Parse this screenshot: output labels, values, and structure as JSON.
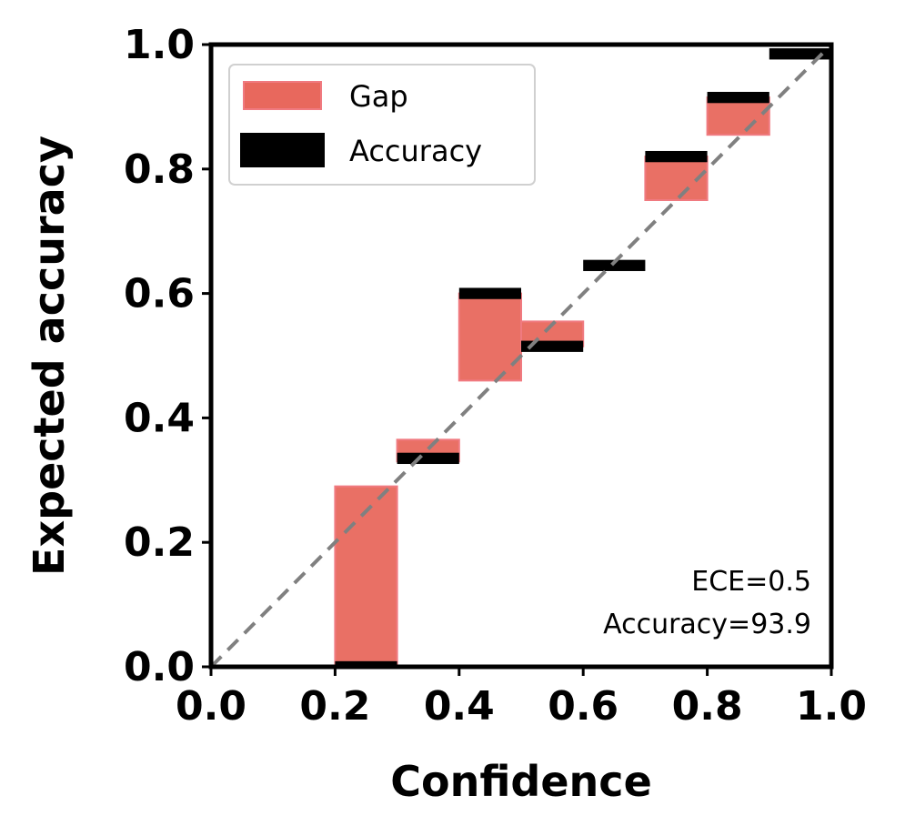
{
  "chart_data": {
    "type": "bar",
    "title": "",
    "xlabel": "Confidence",
    "ylabel": "Expected accuracy",
    "xlim": [
      0.0,
      1.0
    ],
    "ylim": [
      0.0,
      1.0
    ],
    "xticks": [
      "0.0",
      "0.2",
      "0.4",
      "0.6",
      "0.8",
      "1.0"
    ],
    "yticks": [
      "0.0",
      "0.2",
      "0.4",
      "0.6",
      "0.8",
      "1.0"
    ],
    "bin_edges": [
      [
        0.2,
        0.3
      ],
      [
        0.3,
        0.4
      ],
      [
        0.4,
        0.5
      ],
      [
        0.5,
        0.6
      ],
      [
        0.6,
        0.7
      ],
      [
        0.7,
        0.8
      ],
      [
        0.8,
        0.9
      ],
      [
        0.9,
        1.0
      ]
    ],
    "series": [
      {
        "name": "Gap",
        "color": "#e8685d",
        "ranges": [
          [
            0.0,
            0.29
          ],
          [
            0.33,
            0.365
          ],
          [
            0.46,
            0.6
          ],
          [
            0.515,
            0.555
          ],
          [
            0.645,
            0.645
          ],
          [
            0.75,
            0.82
          ],
          [
            0.855,
            0.915
          ],
          [
            0.985,
            0.985
          ]
        ]
      },
      {
        "name": "Accuracy",
        "color": "#000000",
        "values": [
          0.0,
          0.335,
          0.6,
          0.515,
          0.645,
          0.82,
          0.915,
          0.985
        ]
      }
    ],
    "reference_line": {
      "from": [
        0,
        0
      ],
      "to": [
        1,
        1
      ],
      "style": "dashed",
      "color": "#808080"
    },
    "legend": {
      "position": "top-left",
      "entries": [
        "Gap",
        "Accuracy"
      ]
    },
    "annotations": [
      "ECE=0.5",
      "Accuracy=93.9"
    ],
    "grid": false
  }
}
